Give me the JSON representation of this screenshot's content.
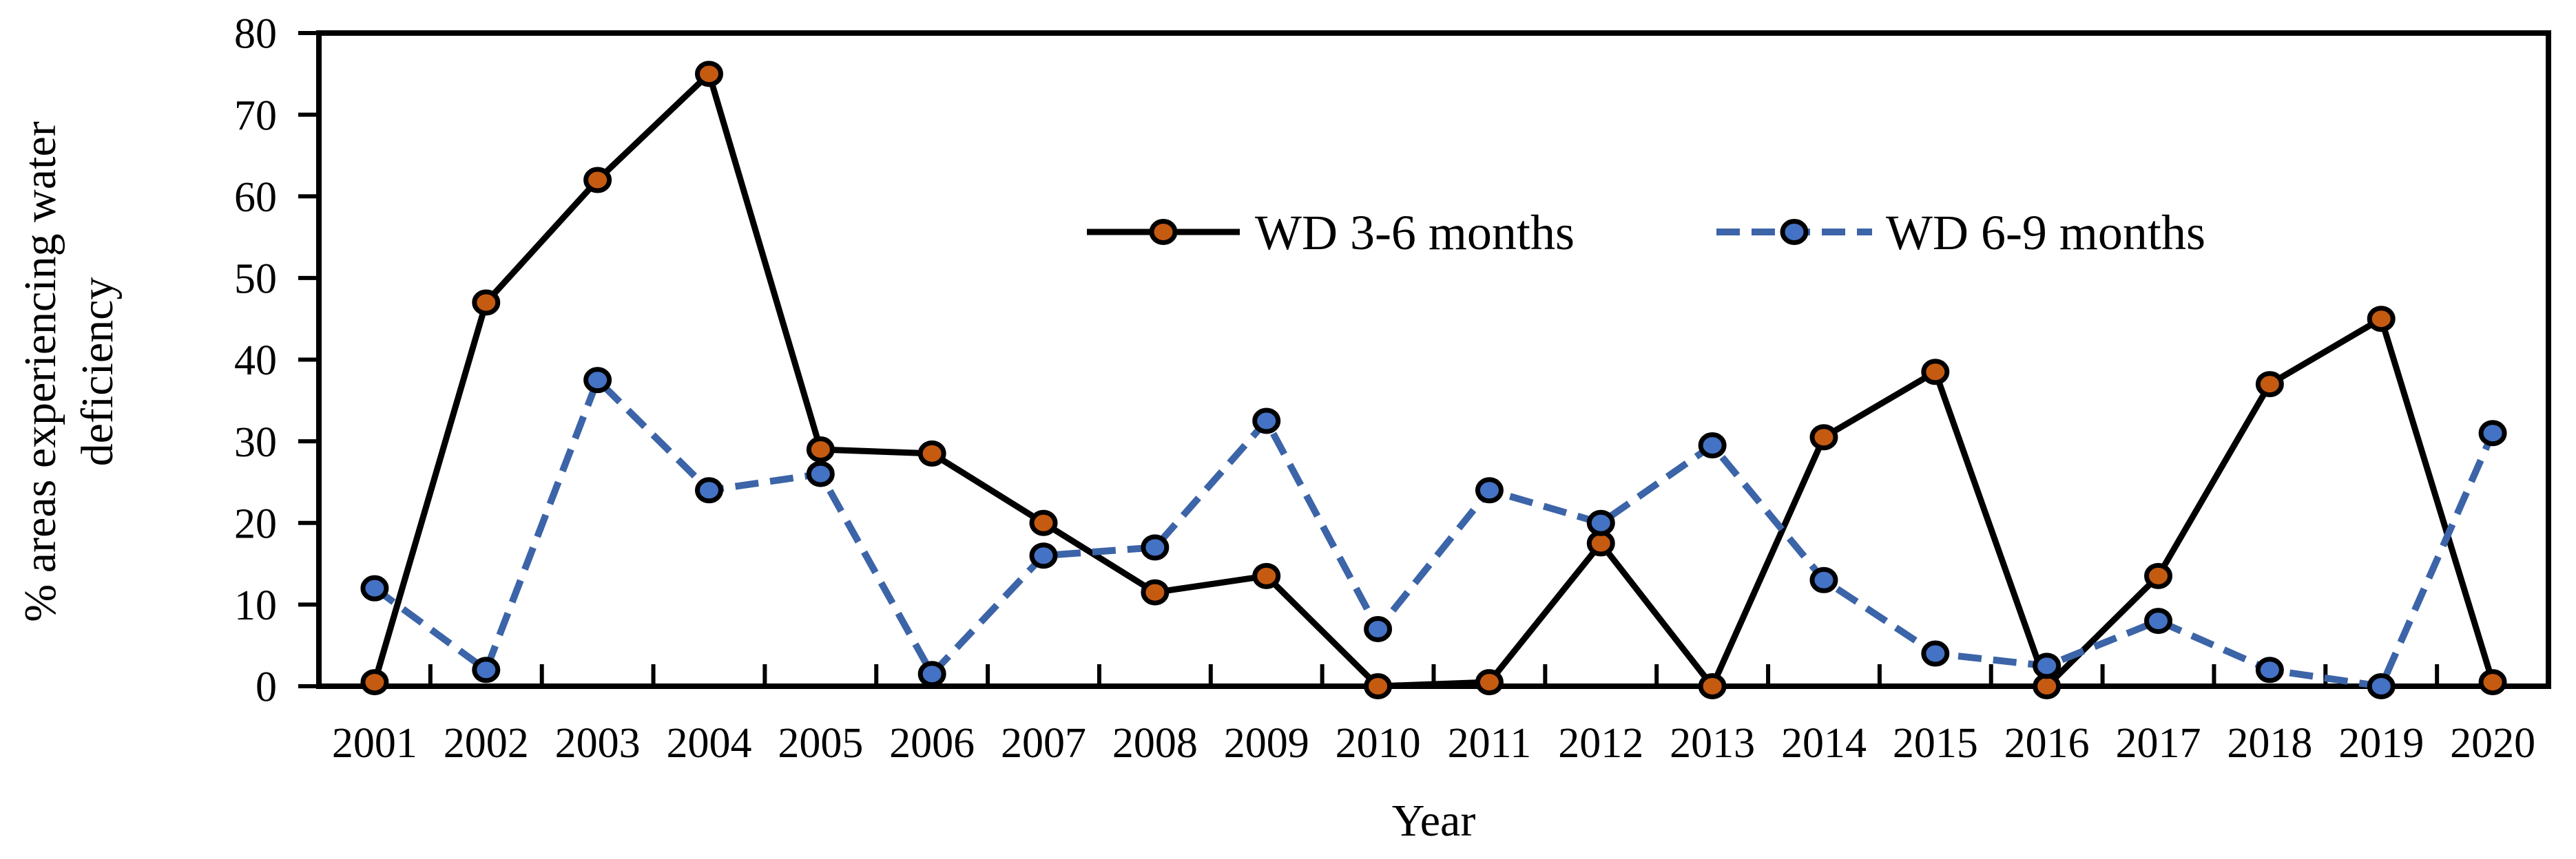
{
  "chart_data": {
    "type": "line",
    "title": "",
    "xlabel": "Year",
    "ylabel_lines": [
      "% areas experiencing water",
      "deficiency"
    ],
    "categories": [
      "2001",
      "2002",
      "2003",
      "2004",
      "2005",
      "2006",
      "2007",
      "2008",
      "2009",
      "2010",
      "2011",
      "2012",
      "2013",
      "2014",
      "2015",
      "2016",
      "2017",
      "2018",
      "2019",
      "2020"
    ],
    "ylim": [
      0,
      80
    ],
    "yticks": [
      0,
      10,
      20,
      30,
      40,
      50,
      60,
      70,
      80
    ],
    "grid": false,
    "plot_border": true,
    "tick_style": {
      "y": "outside",
      "x": "inside"
    },
    "legend_position": "inside-top-center",
    "colors": {
      "series1_line": "#000000",
      "series1_marker_fill": "#C55A11",
      "series2_line": "#3C64A8",
      "series2_marker_fill": "#4472C4",
      "marker_outline": "#000000",
      "axis": "#000000",
      "text": "#000000",
      "background": "#ffffff"
    },
    "series": [
      {
        "name": "WD 3-6 months",
        "line_style": "solid",
        "line_color": "#000000",
        "marker_fill": "#C55A11",
        "values": [
          0.5,
          47,
          62,
          75,
          29,
          28.5,
          20,
          11.5,
          13.5,
          0,
          0.5,
          17.5,
          0,
          30.5,
          38.5,
          0,
          13.5,
          37,
          45,
          0.5
        ]
      },
      {
        "name": "WD 6-9 months",
        "line_style": "dashed",
        "line_color": "#3C64A8",
        "marker_fill": "#4472C4",
        "values": [
          12,
          2,
          37.5,
          24,
          26,
          1.5,
          16,
          17,
          32.5,
          7,
          24,
          20,
          29.5,
          13,
          4,
          2.5,
          8,
          2,
          0,
          31
        ]
      }
    ]
  }
}
